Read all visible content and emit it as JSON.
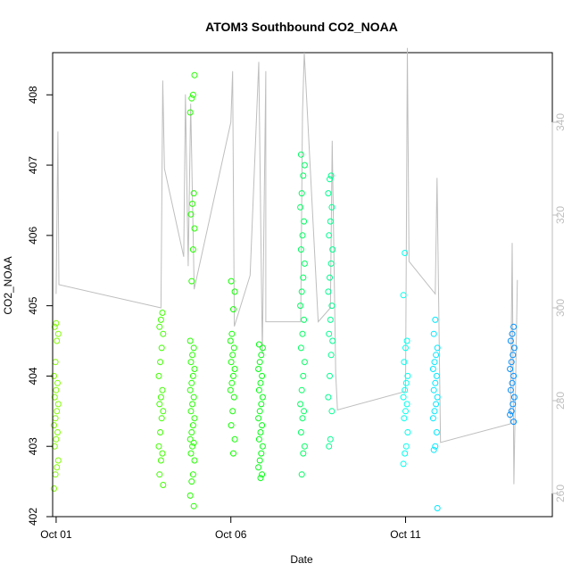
{
  "chart_data": {
    "type": "scatter",
    "title": "ATOM3 Southbound CO2_NOAA",
    "xlabel": "Date",
    "ylabel": "CO2_NOAA",
    "x_ticks": [
      "Oct 01",
      "Oct 06",
      "Oct 11"
    ],
    "x_tick_days": [
      1,
      6,
      11
    ],
    "xlim_days": [
      0.9,
      15.2
    ],
    "ylim": [
      402.0,
      408.6
    ],
    "y_ticks": [
      402,
      403,
      404,
      405,
      406,
      407,
      408
    ],
    "right_axis": {
      "ticks": [
        260,
        280,
        300,
        320,
        340
      ],
      "lim": [
        255,
        355
      ],
      "color": "#bebebe",
      "note": "secondary axis for gray trace"
    },
    "grid": false,
    "marker": "open-circle",
    "series": [
      {
        "day": 1.0,
        "color": "#80ff00",
        "values": [
          402.4,
          402.6,
          402.7,
          402.8,
          403.0,
          403.1,
          403.2,
          403.3,
          403.4,
          403.5,
          403.6,
          403.7,
          403.8,
          403.9,
          404.0,
          404.2,
          404.5,
          404.6,
          404.7,
          404.75
        ]
      },
      {
        "day": 4.0,
        "color": "#40ff00",
        "values": [
          402.45,
          402.6,
          402.8,
          402.9,
          403.0,
          403.2,
          403.4,
          403.5,
          403.6,
          403.7,
          403.8,
          404.0,
          404.2,
          404.4,
          404.6,
          404.7,
          404.8,
          404.9
        ]
      },
      {
        "day": 4.9,
        "color": "#25ff00",
        "values": [
          402.15,
          402.3,
          402.5,
          402.6,
          402.8,
          402.9,
          403.0,
          403.05,
          403.1,
          403.2,
          403.3,
          403.4,
          403.5,
          403.6,
          403.7,
          403.8,
          403.9,
          404.0,
          404.1,
          404.2,
          404.3,
          404.4,
          404.5,
          405.35,
          405.8,
          406.1,
          406.3,
          406.45,
          406.6,
          407.75,
          407.95,
          408.0,
          408.28
        ]
      },
      {
        "day": 6.05,
        "color": "#10ff00",
        "values": [
          402.9,
          403.1,
          403.3,
          403.5,
          403.7,
          403.8,
          403.9,
          404.0,
          404.1,
          404.2,
          404.3,
          404.4,
          404.5,
          404.6,
          404.95,
          405.2,
          405.35
        ]
      },
      {
        "day": 6.85,
        "color": "#00ff10",
        "values": [
          402.55,
          402.6,
          402.7,
          402.8,
          402.9,
          403.0,
          403.1,
          403.2,
          403.3,
          403.4,
          403.5,
          403.6,
          403.7,
          403.8,
          403.9,
          404.0,
          404.1,
          404.2,
          404.3,
          404.4,
          404.45
        ]
      },
      {
        "day": 8.05,
        "color": "#00ff60",
        "values": [
          402.6,
          402.9,
          403.0,
          403.2,
          403.4,
          403.5,
          403.6,
          403.8,
          404.0,
          404.2,
          404.4,
          404.6,
          404.8,
          405.0,
          405.2,
          405.4,
          405.6,
          405.8,
          406.0,
          406.2,
          406.4,
          406.6,
          406.85,
          407.0,
          407.15
        ]
      },
      {
        "day": 8.85,
        "color": "#00ff90",
        "values": [
          403.0,
          403.1,
          403.5,
          403.7,
          404.0,
          404.3,
          404.5,
          404.6,
          404.8,
          405.0,
          405.2,
          405.4,
          405.6,
          405.8,
          406.0,
          406.2,
          406.4,
          406.6,
          406.8,
          406.85
        ]
      },
      {
        "day": 11.0,
        "color": "#00ffee",
        "values": [
          402.75,
          402.9,
          403.0,
          403.2,
          403.4,
          403.5,
          403.6,
          403.7,
          403.8,
          403.9,
          404.0,
          404.2,
          404.4,
          404.5,
          405.15,
          405.75
        ]
      },
      {
        "day": 11.85,
        "color": "#00e8ff",
        "values": [
          402.12,
          402.95,
          403.0,
          403.2,
          403.4,
          403.5,
          403.6,
          403.7,
          403.8,
          403.9,
          404.0,
          404.1,
          404.2,
          404.3,
          404.4,
          404.6,
          404.8
        ]
      },
      {
        "day": 14.05,
        "color": "#0090ff",
        "values": [
          403.35,
          403.45,
          403.5,
          403.6,
          403.7,
          403.8,
          403.9,
          404.0,
          404.1,
          404.2,
          404.3,
          404.4,
          404.5,
          404.6,
          404.7
        ]
      }
    ],
    "line_trace": {
      "color": "#bebebe",
      "axis": "right",
      "points": [
        [
          1.0,
          303
        ],
        [
          1.05,
          338
        ],
        [
          1.08,
          305
        ],
        [
          4.0,
          300
        ],
        [
          4.05,
          349
        ],
        [
          4.1,
          330
        ],
        [
          4.65,
          311
        ],
        [
          4.7,
          346
        ],
        [
          4.78,
          309
        ],
        [
          4.85,
          344
        ],
        [
          4.95,
          304
        ],
        [
          6.0,
          340
        ],
        [
          6.05,
          351
        ],
        [
          6.1,
          296
        ],
        [
          6.55,
          307
        ],
        [
          6.8,
          353
        ],
        [
          6.9,
          290
        ],
        [
          7.0,
          351
        ],
        [
          7.0,
          297
        ],
        [
          8.0,
          297
        ],
        [
          8.05,
          342
        ],
        [
          8.1,
          355
        ],
        [
          8.5,
          297
        ],
        [
          8.85,
          300
        ],
        [
          8.9,
          336
        ],
        [
          9.0,
          286
        ],
        [
          9.05,
          278
        ],
        [
          11.0,
          282
        ],
        [
          11.05,
          356
        ],
        [
          11.1,
          310
        ],
        [
          11.85,
          303
        ],
        [
          11.9,
          328
        ],
        [
          12.0,
          271
        ],
        [
          14.0,
          275
        ],
        [
          14.05,
          314
        ],
        [
          14.1,
          262
        ],
        [
          14.2,
          306
        ]
      ]
    }
  }
}
